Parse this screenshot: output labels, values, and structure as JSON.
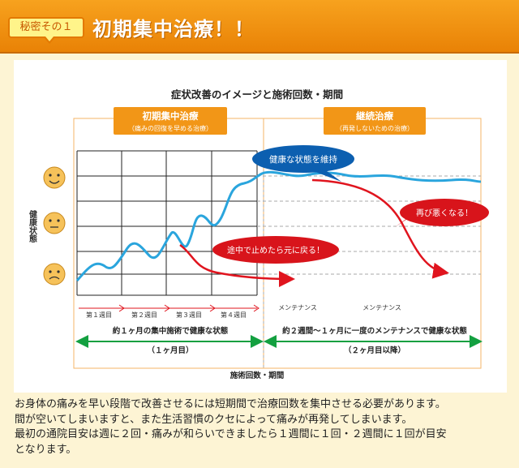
{
  "header": {
    "badge": "秘密その１",
    "title": "初期集中治療！！"
  },
  "chart": {
    "title": "症状改善のイメージと施術回数・期間",
    "phase1": {
      "title": "初期集中治療",
      "subtitle": "（痛みの回復を早める治療）"
    },
    "phase2": {
      "title": "継続治療",
      "subtitle": "（再発しないための治療）"
    },
    "ylabel": "健康状態",
    "xlabel": "施術回数・期間",
    "callouts": {
      "maintain": "健康な状態を維持",
      "relapse_early": "途中で止めたら元に戻る！",
      "relapse_late": "再び悪くなる！"
    },
    "weeks": [
      "第１週目",
      "第２週目",
      "第３週目",
      "第４週目"
    ],
    "maintenance": [
      "メンテナンス",
      "メンテナンス"
    ],
    "phase1_note": "約１ヶ月の集中施術で健康な状態",
    "phase2_note": "約２週間～１ヶ月に一度のメンテナンスで健康な状態",
    "phase1_duration": "（１ヶ月目）",
    "phase2_duration": "（２ヶ月目以降）",
    "colors": {
      "curve": "#2aa5dd",
      "relapse": "#e0141e",
      "phase_bar": "#f29617",
      "maintain_bubble": "#0c5fb0",
      "arrow_green": "#13a040"
    }
  },
  "body": {
    "lines": [
      "お身体の痛みを早い段階で改善させるには短期間で治療回数を集中させる必要があります。",
      "間が空いてしまいますと、また生活習慣のクセによって痛みが再発してしまいます。",
      "最初の通院目安は週に２回・痛みが和らいできましたら１週間に１回・２週間に１回が目安",
      "となります。"
    ]
  }
}
